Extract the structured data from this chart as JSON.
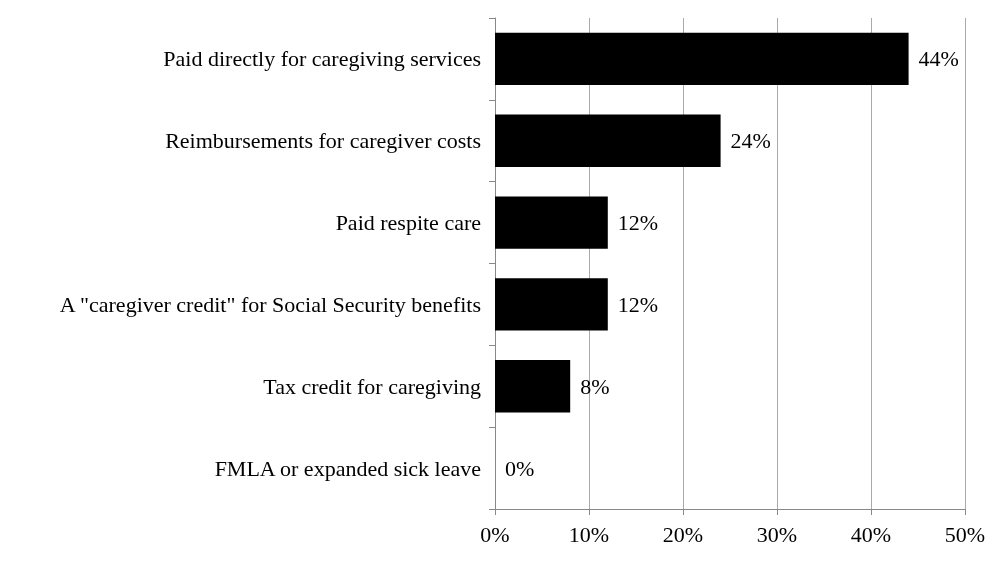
{
  "chart_data": {
    "type": "bar",
    "orientation": "horizontal",
    "categories": [
      "Paid directly for caregiving services",
      "Reimbursements for caregiver costs",
      "Paid respite care",
      "A \"caregiver credit\" for Social Security benefits",
      "Tax credit for caregiving",
      "FMLA or expanded sick leave"
    ],
    "values": [
      44,
      24,
      12,
      12,
      8,
      0
    ],
    "value_labels": [
      "44%",
      "24%",
      "12%",
      "12%",
      "8%",
      "0%"
    ],
    "color": "#000000",
    "xlim": [
      0,
      50
    ],
    "xticks": [
      {
        "value": 0,
        "label": "0%"
      },
      {
        "value": 10,
        "label": "10%"
      },
      {
        "value": 20,
        "label": "20%"
      },
      {
        "value": 30,
        "label": "30%"
      },
      {
        "value": 40,
        "label": "40%"
      },
      {
        "value": 50,
        "label": "50%"
      }
    ],
    "grid": "x"
  }
}
